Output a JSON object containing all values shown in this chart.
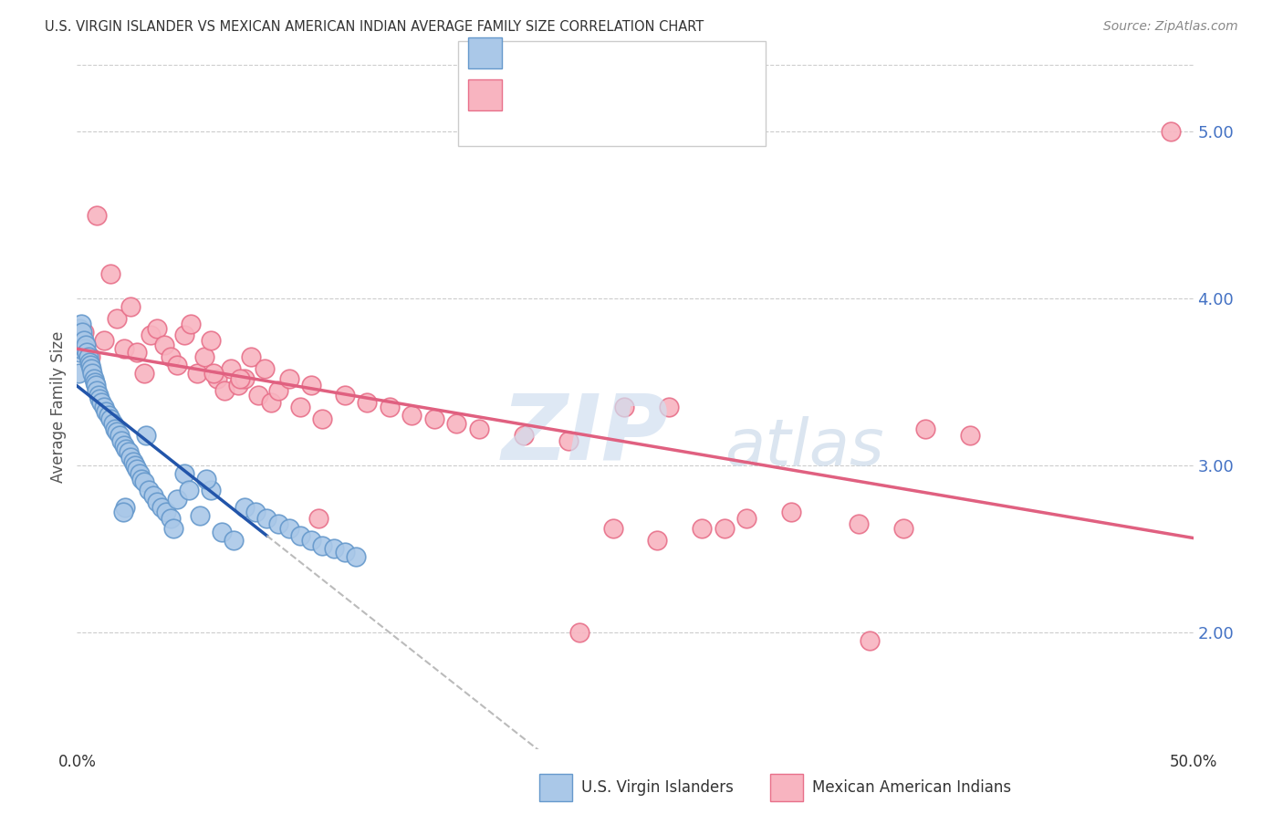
{
  "title": "U.S. VIRGIN ISLANDER VS MEXICAN AMERICAN INDIAN AVERAGE FAMILY SIZE CORRELATION CHART",
  "source": "Source: ZipAtlas.com",
  "ylabel": "Average Family Size",
  "xlim": [
    0.0,
    50.0
  ],
  "ylim": [
    1.3,
    5.4
  ],
  "right_yticks": [
    2.0,
    3.0,
    4.0,
    5.0
  ],
  "blue_color": "#aac8e8",
  "pink_color": "#f8b4c0",
  "blue_edge": "#6699cc",
  "pink_edge": "#e8708a",
  "trend_blue": "#2255aa",
  "trend_pink": "#e06080",
  "trend_gray": "#bbbbbb",
  "background": "#ffffff",
  "grid_color": "#cccccc",
  "blue_points_x": [
    0.05,
    0.08,
    0.1,
    0.12,
    0.15,
    0.18,
    0.2,
    0.25,
    0.3,
    0.35,
    0.4,
    0.45,
    0.5,
    0.55,
    0.6,
    0.65,
    0.7,
    0.75,
    0.8,
    0.85,
    0.9,
    0.95,
    1.0,
    1.1,
    1.2,
    1.3,
    1.4,
    1.5,
    1.6,
    1.7,
    1.8,
    1.9,
    2.0,
    2.1,
    2.2,
    2.3,
    2.4,
    2.5,
    2.6,
    2.7,
    2.8,
    2.9,
    3.0,
    3.2,
    3.4,
    3.6,
    3.8,
    4.0,
    4.2,
    4.5,
    4.8,
    5.0,
    5.5,
    6.0,
    6.5,
    7.0,
    7.5,
    8.0,
    8.5,
    9.0,
    9.5,
    10.0,
    10.5,
    11.0,
    11.5,
    12.0,
    12.5,
    4.3,
    2.15,
    3.1,
    5.8,
    2.05
  ],
  "blue_points_y": [
    3.55,
    3.75,
    3.82,
    3.68,
    3.7,
    3.78,
    3.85,
    3.8,
    3.75,
    3.7,
    3.72,
    3.68,
    3.65,
    3.62,
    3.6,
    3.58,
    3.55,
    3.52,
    3.5,
    3.48,
    3.45,
    3.42,
    3.4,
    3.38,
    3.35,
    3.32,
    3.3,
    3.28,
    3.25,
    3.22,
    3.2,
    3.18,
    3.15,
    3.12,
    3.1,
    3.08,
    3.05,
    3.02,
    3.0,
    2.98,
    2.95,
    2.92,
    2.9,
    2.85,
    2.82,
    2.78,
    2.75,
    2.72,
    2.68,
    2.8,
    2.95,
    2.85,
    2.7,
    2.85,
    2.6,
    2.55,
    2.75,
    2.72,
    2.68,
    2.65,
    2.62,
    2.58,
    2.55,
    2.52,
    2.5,
    2.48,
    2.45,
    2.62,
    2.75,
    3.18,
    2.92,
    2.72
  ],
  "pink_points_x": [
    0.3,
    0.6,
    0.9,
    1.2,
    1.5,
    1.8,
    2.1,
    2.4,
    2.7,
    3.0,
    3.3,
    3.6,
    3.9,
    4.2,
    4.5,
    4.8,
    5.1,
    5.4,
    5.7,
    6.0,
    6.3,
    6.6,
    6.9,
    7.2,
    7.5,
    7.8,
    8.1,
    8.4,
    8.7,
    9.0,
    9.5,
    10.0,
    10.5,
    11.0,
    12.0,
    13.0,
    14.0,
    15.0,
    16.0,
    17.0,
    18.0,
    20.0,
    22.0,
    24.0,
    26.0,
    28.0,
    30.0,
    32.0,
    35.0,
    37.0,
    38.0,
    40.0,
    35.5,
    24.5,
    22.5,
    29.0,
    10.8,
    7.3,
    6.1,
    49.0,
    26.5
  ],
  "pink_points_y": [
    3.8,
    3.65,
    4.5,
    3.75,
    4.15,
    3.88,
    3.7,
    3.95,
    3.68,
    3.55,
    3.78,
    3.82,
    3.72,
    3.65,
    3.6,
    3.78,
    3.85,
    3.55,
    3.65,
    3.75,
    3.52,
    3.45,
    3.58,
    3.48,
    3.52,
    3.65,
    3.42,
    3.58,
    3.38,
    3.45,
    3.52,
    3.35,
    3.48,
    3.28,
    3.42,
    3.38,
    3.35,
    3.3,
    3.28,
    3.25,
    3.22,
    3.18,
    3.15,
    2.62,
    2.55,
    2.62,
    2.68,
    2.72,
    2.65,
    2.62,
    3.22,
    3.18,
    1.95,
    3.35,
    2.0,
    2.62,
    2.68,
    3.52,
    3.55,
    5.0,
    3.35
  ]
}
